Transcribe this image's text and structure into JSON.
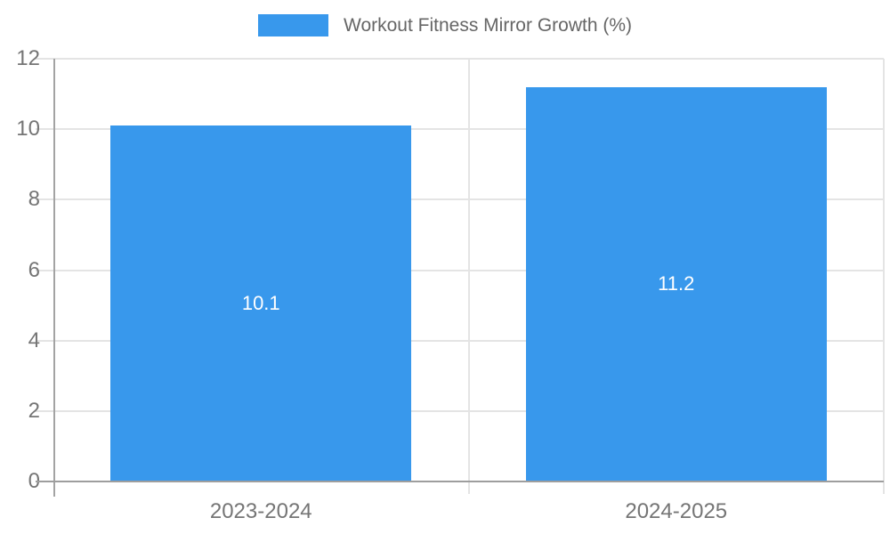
{
  "legend": {
    "items": [
      {
        "label": "Workout Fitness Mirror Growth (%)",
        "color": "#3898ec"
      }
    ]
  },
  "chart_data": {
    "type": "bar",
    "categories": [
      "2023-2024",
      "2024-2025"
    ],
    "values": [
      10.1,
      11.2
    ],
    "value_labels": [
      "10.1",
      "11.2"
    ],
    "series_name": "Workout Fitness Mirror Growth (%)",
    "title": "",
    "xlabel": "",
    "ylabel": "",
    "ylim": [
      0,
      12
    ],
    "yticks": [
      0,
      2,
      4,
      6,
      8,
      10,
      12
    ],
    "grid": true,
    "legend_position": "top",
    "bar_color": "#3898ec",
    "value_label_color": "#ffffff"
  },
  "colors": {
    "bar": "#3898ec",
    "gridline": "#e4e4e4",
    "axis": "#9e9e9e",
    "tick_text": "#757575",
    "legend_text": "#666666",
    "background": "#ffffff"
  }
}
